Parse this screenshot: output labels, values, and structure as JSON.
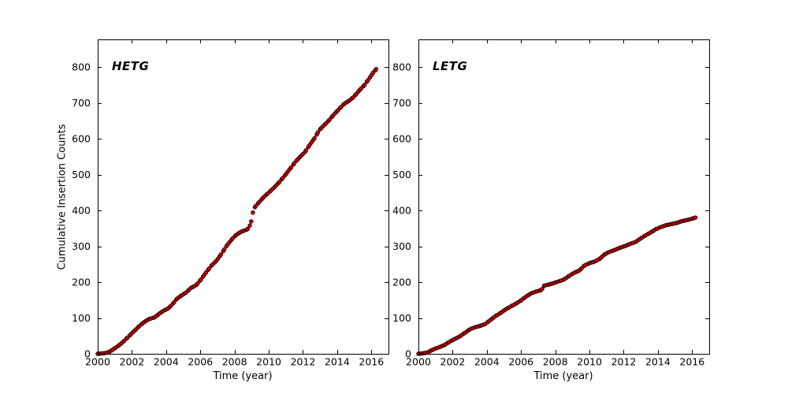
{
  "figure": {
    "background": "#ffffff",
    "ylabel": "Cumulative Insertion Counts"
  },
  "chart_data": [
    {
      "type": "scatter",
      "title": "HETG",
      "xlabel": "Time (year)",
      "ylabel": "Cumulative Insertion Counts",
      "xlim": [
        2000,
        2017
      ],
      "ylim": [
        0,
        877
      ],
      "xticks": [
        2000,
        2002,
        2004,
        2006,
        2008,
        2010,
        2012,
        2014,
        2016
      ],
      "yticks": [
        0,
        100,
        200,
        300,
        400,
        500,
        600,
        700,
        800
      ],
      "grid": false,
      "legend": "none",
      "marker": {
        "shape": "circle",
        "fill": "#d40000",
        "edge": "#1c0000",
        "radius_px": 2.3,
        "count": 168
      },
      "points": [
        [
          2000.0,
          0
        ],
        [
          2000.45,
          2
        ],
        [
          2000.7,
          6
        ],
        [
          2000.95,
          14
        ],
        [
          2001.2,
          22
        ],
        [
          2001.5,
          34
        ],
        [
          2001.8,
          48
        ],
        [
          2002.1,
          62
        ],
        [
          2002.4,
          76
        ],
        [
          2002.7,
          88
        ],
        [
          2003.0,
          97
        ],
        [
          2003.35,
          102
        ],
        [
          2003.6,
          112
        ],
        [
          2003.85,
          120
        ],
        [
          2004.1,
          126
        ],
        [
          2004.35,
          137
        ],
        [
          2004.6,
          152
        ],
        [
          2004.9,
          163
        ],
        [
          2005.2,
          172
        ],
        [
          2005.45,
          184
        ],
        [
          2005.75,
          191
        ],
        [
          2006.05,
          208
        ],
        [
          2006.35,
          228
        ],
        [
          2006.65,
          246
        ],
        [
          2006.95,
          260
        ],
        [
          2007.25,
          280
        ],
        [
          2007.55,
          302
        ],
        [
          2007.85,
          320
        ],
        [
          2008.1,
          332
        ],
        [
          2008.4,
          341
        ],
        [
          2008.75,
          347
        ],
        [
          2008.95,
          362
        ],
        [
          2009.05,
          390
        ],
        [
          2009.15,
          407
        ],
        [
          2009.4,
          421
        ],
        [
          2009.7,
          437
        ],
        [
          2010.0,
          450
        ],
        [
          2010.3,
          463
        ],
        [
          2010.6,
          478
        ],
        [
          2010.9,
          495
        ],
        [
          2011.2,
          513
        ],
        [
          2011.5,
          532
        ],
        [
          2011.8,
          548
        ],
        [
          2012.1,
          562
        ],
        [
          2012.4,
          583
        ],
        [
          2012.7,
          603
        ],
        [
          2012.95,
          624
        ],
        [
          2013.2,
          636
        ],
        [
          2013.5,
          650
        ],
        [
          2013.8,
          667
        ],
        [
          2014.1,
          682
        ],
        [
          2014.4,
          697
        ],
        [
          2014.7,
          706
        ],
        [
          2015.0,
          718
        ],
        [
          2015.3,
          735
        ],
        [
          2015.6,
          750
        ],
        [
          2015.9,
          770
        ],
        [
          2016.1,
          784
        ],
        [
          2016.3,
          795
        ]
      ]
    },
    {
      "type": "scatter",
      "title": "LETG",
      "xlabel": "Time (year)",
      "ylabel": "",
      "xlim": [
        2000,
        2017
      ],
      "ylim": [
        0,
        877
      ],
      "xticks": [
        2000,
        2002,
        2004,
        2006,
        2008,
        2010,
        2012,
        2014,
        2016
      ],
      "yticks": [
        0,
        100,
        200,
        300,
        400,
        500,
        600,
        700,
        800
      ],
      "grid": false,
      "legend": "none",
      "marker": {
        "shape": "circle",
        "fill": "#d40000",
        "edge": "#1c0000",
        "radius_px": 2.3,
        "count": 162
      },
      "points": [
        [
          2000.0,
          0
        ],
        [
          2000.5,
          3
        ],
        [
          2000.9,
          13
        ],
        [
          2001.2,
          18
        ],
        [
          2001.5,
          24
        ],
        [
          2001.8,
          33
        ],
        [
          2002.1,
          41
        ],
        [
          2002.4,
          48
        ],
        [
          2002.7,
          58
        ],
        [
          2003.0,
          68
        ],
        [
          2003.3,
          74
        ],
        [
          2003.6,
          78
        ],
        [
          2003.9,
          83
        ],
        [
          2004.2,
          94
        ],
        [
          2004.5,
          105
        ],
        [
          2004.8,
          114
        ],
        [
          2005.1,
          124
        ],
        [
          2005.4,
          132
        ],
        [
          2005.7,
          140
        ],
        [
          2006.0,
          149
        ],
        [
          2006.3,
          160
        ],
        [
          2006.6,
          169
        ],
        [
          2006.9,
          174
        ],
        [
          2007.2,
          178
        ],
        [
          2007.35,
          190
        ],
        [
          2007.6,
          193
        ],
        [
          2007.9,
          197
        ],
        [
          2008.2,
          202
        ],
        [
          2008.5,
          207
        ],
        [
          2008.8,
          217
        ],
        [
          2009.1,
          226
        ],
        [
          2009.4,
          232
        ],
        [
          2009.7,
          246
        ],
        [
          2010.0,
          253
        ],
        [
          2010.3,
          257
        ],
        [
          2010.6,
          265
        ],
        [
          2010.9,
          278
        ],
        [
          2011.2,
          285
        ],
        [
          2011.5,
          290
        ],
        [
          2011.8,
          296
        ],
        [
          2012.1,
          301
        ],
        [
          2012.4,
          307
        ],
        [
          2012.7,
          312
        ],
        [
          2013.0,
          322
        ],
        [
          2013.3,
          331
        ],
        [
          2013.6,
          339
        ],
        [
          2013.9,
          348
        ],
        [
          2014.2,
          354
        ],
        [
          2014.5,
          359
        ],
        [
          2014.8,
          362
        ],
        [
          2015.1,
          365
        ],
        [
          2015.4,
          370
        ],
        [
          2015.7,
          373
        ],
        [
          2016.0,
          377
        ],
        [
          2016.2,
          380
        ]
      ]
    }
  ]
}
